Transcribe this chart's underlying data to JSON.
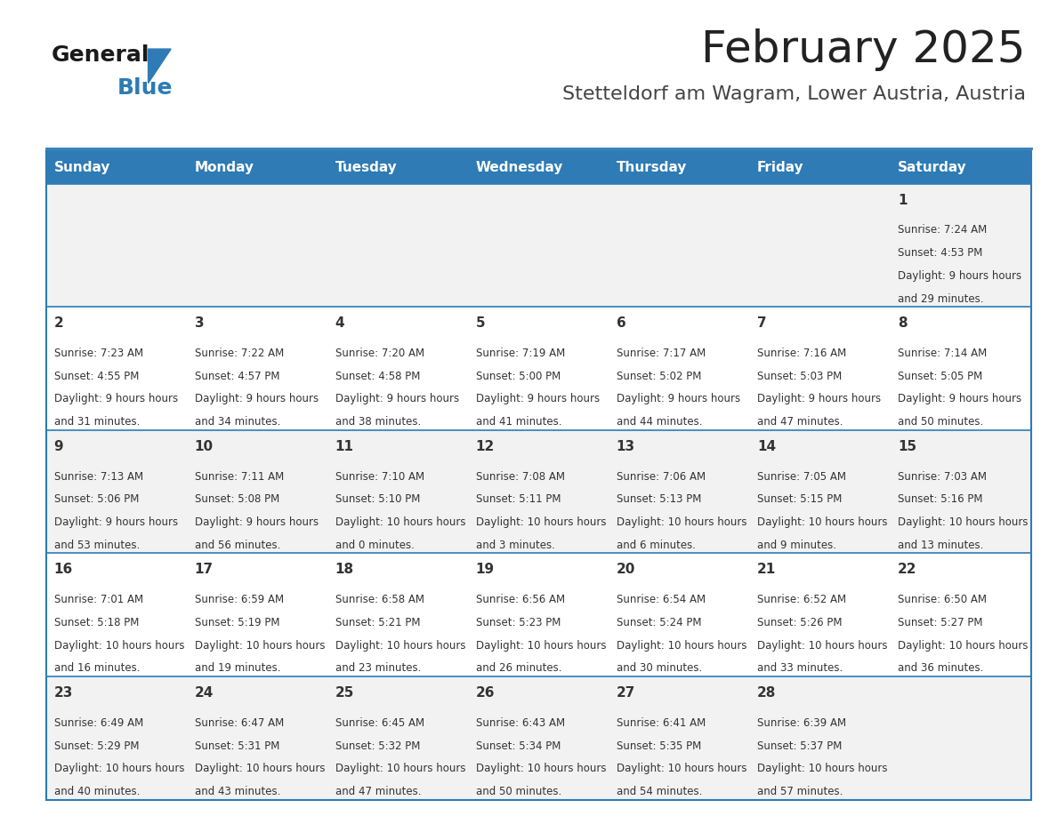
{
  "title": "February 2025",
  "subtitle": "Stetteldorf am Wagram, Lower Austria, Austria",
  "days_of_week": [
    "Sunday",
    "Monday",
    "Tuesday",
    "Wednesday",
    "Thursday",
    "Friday",
    "Saturday"
  ],
  "header_bg": "#2E7BB5",
  "header_text": "#FFFFFF",
  "row_bg_even": "#F2F2F2",
  "row_bg_odd": "#FFFFFF",
  "separator_color": "#2E7BB5",
  "text_color": "#333333",
  "title_color": "#222222",
  "subtitle_color": "#444444",
  "calendar_data": [
    [
      null,
      null,
      null,
      null,
      null,
      null,
      {
        "day": 1,
        "sunrise": "7:24 AM",
        "sunset": "4:53 PM",
        "daylight": "9 hours and 29 minutes."
      }
    ],
    [
      {
        "day": 2,
        "sunrise": "7:23 AM",
        "sunset": "4:55 PM",
        "daylight": "9 hours and 31 minutes."
      },
      {
        "day": 3,
        "sunrise": "7:22 AM",
        "sunset": "4:57 PM",
        "daylight": "9 hours and 34 minutes."
      },
      {
        "day": 4,
        "sunrise": "7:20 AM",
        "sunset": "4:58 PM",
        "daylight": "9 hours and 38 minutes."
      },
      {
        "day": 5,
        "sunrise": "7:19 AM",
        "sunset": "5:00 PM",
        "daylight": "9 hours and 41 minutes."
      },
      {
        "day": 6,
        "sunrise": "7:17 AM",
        "sunset": "5:02 PM",
        "daylight": "9 hours and 44 minutes."
      },
      {
        "day": 7,
        "sunrise": "7:16 AM",
        "sunset": "5:03 PM",
        "daylight": "9 hours and 47 minutes."
      },
      {
        "day": 8,
        "sunrise": "7:14 AM",
        "sunset": "5:05 PM",
        "daylight": "9 hours and 50 minutes."
      }
    ],
    [
      {
        "day": 9,
        "sunrise": "7:13 AM",
        "sunset": "5:06 PM",
        "daylight": "9 hours and 53 minutes."
      },
      {
        "day": 10,
        "sunrise": "7:11 AM",
        "sunset": "5:08 PM",
        "daylight": "9 hours and 56 minutes."
      },
      {
        "day": 11,
        "sunrise": "7:10 AM",
        "sunset": "5:10 PM",
        "daylight": "10 hours and 0 minutes."
      },
      {
        "day": 12,
        "sunrise": "7:08 AM",
        "sunset": "5:11 PM",
        "daylight": "10 hours and 3 minutes."
      },
      {
        "day": 13,
        "sunrise": "7:06 AM",
        "sunset": "5:13 PM",
        "daylight": "10 hours and 6 minutes."
      },
      {
        "day": 14,
        "sunrise": "7:05 AM",
        "sunset": "5:15 PM",
        "daylight": "10 hours and 9 minutes."
      },
      {
        "day": 15,
        "sunrise": "7:03 AM",
        "sunset": "5:16 PM",
        "daylight": "10 hours and 13 minutes."
      }
    ],
    [
      {
        "day": 16,
        "sunrise": "7:01 AM",
        "sunset": "5:18 PM",
        "daylight": "10 hours and 16 minutes."
      },
      {
        "day": 17,
        "sunrise": "6:59 AM",
        "sunset": "5:19 PM",
        "daylight": "10 hours and 19 minutes."
      },
      {
        "day": 18,
        "sunrise": "6:58 AM",
        "sunset": "5:21 PM",
        "daylight": "10 hours and 23 minutes."
      },
      {
        "day": 19,
        "sunrise": "6:56 AM",
        "sunset": "5:23 PM",
        "daylight": "10 hours and 26 minutes."
      },
      {
        "day": 20,
        "sunrise": "6:54 AM",
        "sunset": "5:24 PM",
        "daylight": "10 hours and 30 minutes."
      },
      {
        "day": 21,
        "sunrise": "6:52 AM",
        "sunset": "5:26 PM",
        "daylight": "10 hours and 33 minutes."
      },
      {
        "day": 22,
        "sunrise": "6:50 AM",
        "sunset": "5:27 PM",
        "daylight": "10 hours and 36 minutes."
      }
    ],
    [
      {
        "day": 23,
        "sunrise": "6:49 AM",
        "sunset": "5:29 PM",
        "daylight": "10 hours and 40 minutes."
      },
      {
        "day": 24,
        "sunrise": "6:47 AM",
        "sunset": "5:31 PM",
        "daylight": "10 hours and 43 minutes."
      },
      {
        "day": 25,
        "sunrise": "6:45 AM",
        "sunset": "5:32 PM",
        "daylight": "10 hours and 47 minutes."
      },
      {
        "day": 26,
        "sunrise": "6:43 AM",
        "sunset": "5:34 PM",
        "daylight": "10 hours and 50 minutes."
      },
      {
        "day": 27,
        "sunrise": "6:41 AM",
        "sunset": "5:35 PM",
        "daylight": "10 hours and 54 minutes."
      },
      {
        "day": 28,
        "sunrise": "6:39 AM",
        "sunset": "5:37 PM",
        "daylight": "10 hours and 57 minutes."
      },
      null
    ]
  ]
}
